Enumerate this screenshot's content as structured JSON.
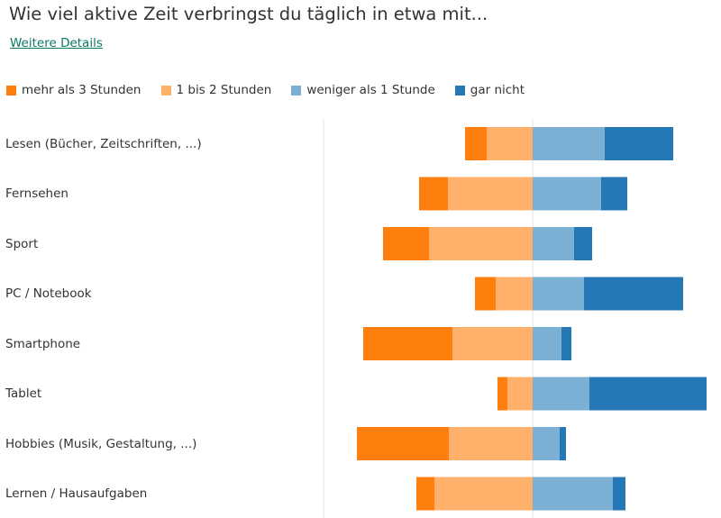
{
  "title": "Wie viel aktive Zeit verbringst du täglich in etwa mit...",
  "details_link": "Weitere Details",
  "legend": [
    {
      "label": "mehr als 3 Stunden",
      "color": "#ff7f0e"
    },
    {
      "label": "1 bis 2 Stunden",
      "color": "#ffb06b"
    },
    {
      "label": "weniger als 1 Stunde",
      "color": "#7bafd4"
    },
    {
      "label": "gar nicht",
      "color": "#2577b5"
    }
  ],
  "chart_data": {
    "type": "bar",
    "orientation": "horizontal",
    "diverging": true,
    "categories": [
      "Lesen (Bücher, Zeitschriften, ...)",
      "Fernsehen",
      "Sport",
      "PC / Notebook",
      "Smartphone",
      "Tablet",
      "Hobbies (Musik, Gestaltung, ...)",
      "Lernen / Hausaufgaben"
    ],
    "series": [
      {
        "name": "mehr als 3 Stunden",
        "side": "left",
        "color": "#ff7f0e",
        "values": [
          24,
          32,
          51,
          23,
          99,
          11,
          102,
          20
        ]
      },
      {
        "name": "1 bis 2 Stunden",
        "side": "left",
        "color": "#ffb06b",
        "values": [
          51,
          94,
          115,
          41,
          89,
          28,
          93,
          109
        ]
      },
      {
        "name": "weniger als 1 Stunde",
        "side": "right",
        "color": "#7bafd4",
        "values": [
          80,
          76,
          46,
          57,
          32,
          63,
          30,
          89
        ]
      },
      {
        "name": "gar nicht",
        "side": "right",
        "color": "#2577b5",
        "values": [
          76,
          29,
          20,
          110,
          11,
          130,
          7,
          14
        ]
      }
    ],
    "xlim": [
      -230,
      210
    ],
    "grid": false,
    "legend_position": "top-left"
  }
}
